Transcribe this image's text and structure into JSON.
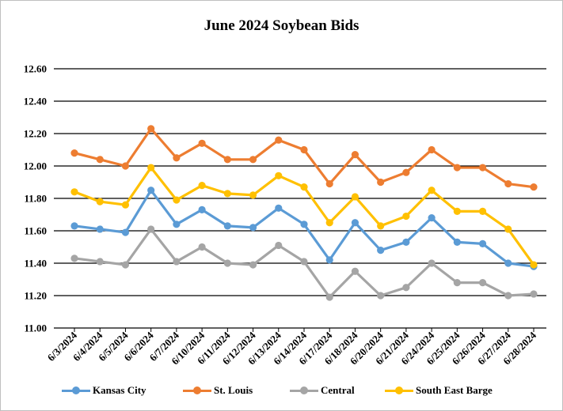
{
  "chart_data": {
    "type": "line",
    "title": "June 2024 Soybean Bids",
    "xlabel": "",
    "ylabel": "",
    "ylim": [
      11.0,
      12.6
    ],
    "y_ticks": [
      "11.00",
      "11.20",
      "11.40",
      "11.60",
      "11.80",
      "12.00",
      "12.20",
      "12.40",
      "12.60"
    ],
    "grid": true,
    "legend_position": "bottom",
    "categories": [
      "6/3/2024",
      "6/4/2024",
      "6/5/2024",
      "6/6/2024",
      "6/7/2024",
      "6/10/2024",
      "6/11/2024",
      "6/12/2024",
      "6/13/2024",
      "6/14/2024",
      "6/17/2024",
      "6/18/2024",
      "6/20/2024",
      "6/21/2024",
      "6/24/2024",
      "6/25/2024",
      "6/26/2024",
      "6/27/2024",
      "6/28/2024"
    ],
    "series": [
      {
        "name": "Kansas City",
        "color": "#5b9bd5",
        "values": [
          11.63,
          11.61,
          11.59,
          11.85,
          11.64,
          11.73,
          11.63,
          11.62,
          11.74,
          11.64,
          11.42,
          11.65,
          11.48,
          11.53,
          11.68,
          11.53,
          11.52,
          11.4,
          11.38
        ]
      },
      {
        "name": "St. Louis",
        "color": "#ed7d31",
        "values": [
          12.08,
          12.04,
          12.0,
          12.23,
          12.05,
          12.14,
          12.04,
          12.04,
          12.16,
          12.1,
          11.89,
          12.07,
          11.9,
          11.96,
          12.1,
          11.99,
          11.99,
          11.89,
          11.87
        ]
      },
      {
        "name": "Central",
        "color": "#a5a5a5",
        "values": [
          11.43,
          11.41,
          11.39,
          11.61,
          11.41,
          11.5,
          11.4,
          11.39,
          11.51,
          11.41,
          11.19,
          11.35,
          11.2,
          11.25,
          11.4,
          11.28,
          11.28,
          11.2,
          11.21
        ]
      },
      {
        "name": "South East Barge",
        "color": "#ffc000",
        "values": [
          11.84,
          11.78,
          11.76,
          11.99,
          11.79,
          11.88,
          11.83,
          11.82,
          11.94,
          11.87,
          11.65,
          11.81,
          11.63,
          11.69,
          11.85,
          11.72,
          11.72,
          11.61,
          11.39
        ]
      }
    ]
  }
}
